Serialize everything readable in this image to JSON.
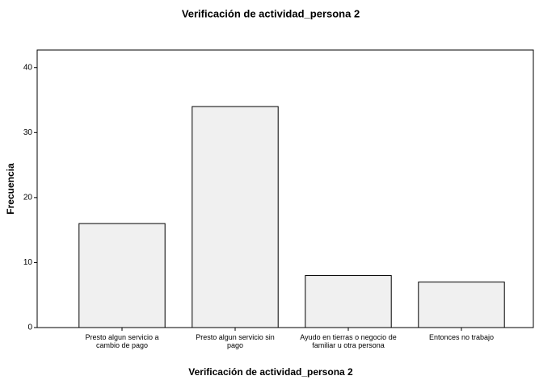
{
  "chart_data": {
    "type": "bar",
    "title": "Verificación de actividad_persona 2",
    "x_label": "Verificación de actividad_persona 2",
    "y_label": "Frecuencia",
    "categories": [
      "Presto algun servicio a cambio de pago",
      "Presto algun servicio sin pago",
      "Ayudo en tierras o negocio de familiar u otra persona",
      "Entonces no trabajo"
    ],
    "values": [
      16,
      34,
      8,
      7
    ],
    "color": "#f0f0f0",
    "ylim": [
      0,
      42.7
    ],
    "yticks": [
      0,
      10,
      20,
      30,
      40
    ],
    "grid": false
  }
}
